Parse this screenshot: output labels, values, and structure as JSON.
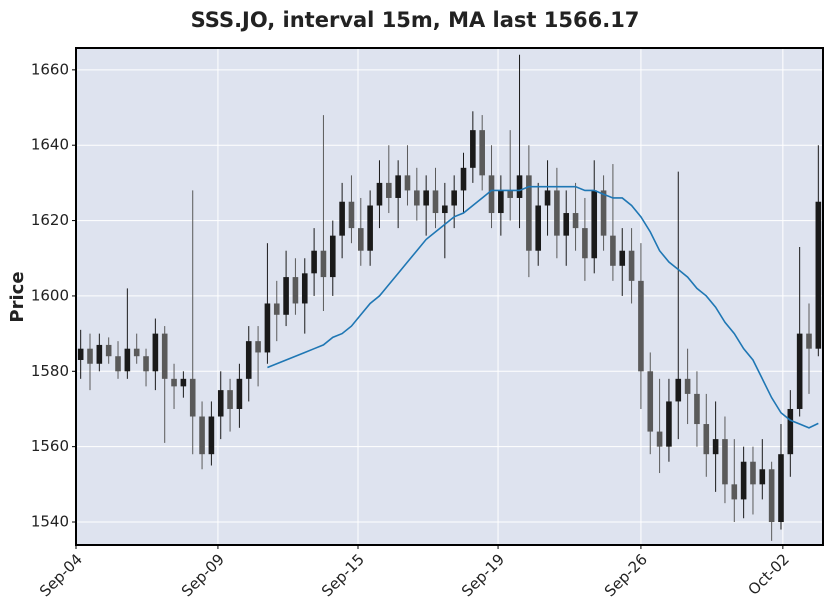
{
  "chart_data": {
    "type": "candlestick",
    "title": "SSS.JO, interval 15m, MA last 1566.17",
    "y_label": "Price",
    "candles": {
      "x": [
        0,
        1,
        2,
        3,
        4,
        5,
        6,
        7,
        8,
        9,
        10,
        11,
        12,
        13,
        14,
        15,
        16,
        17,
        18,
        19,
        20,
        21,
        22,
        23,
        24,
        25,
        26,
        27,
        28,
        29,
        30,
        31,
        32,
        33,
        34,
        35,
        36,
        37,
        38,
        39,
        40,
        41,
        42,
        43,
        44,
        45,
        46,
        47,
        48,
        49,
        50,
        51,
        52,
        53,
        54,
        55,
        56,
        57,
        58,
        59,
        60,
        61,
        62,
        63,
        64,
        65,
        66,
        67,
        68,
        69,
        70,
        71,
        72,
        73,
        74,
        75,
        76,
        77,
        78,
        79
      ],
      "open": [
        1583,
        1586,
        1582,
        1587,
        1584,
        1580,
        1586,
        1584,
        1580,
        1590,
        1578,
        1576,
        1578,
        1568,
        1558,
        1568,
        1575,
        1570,
        1578,
        1588,
        1585,
        1598,
        1595,
        1605,
        1598,
        1606,
        1612,
        1605,
        1616,
        1625,
        1618,
        1612,
        1624,
        1630,
        1626,
        1632,
        1628,
        1624,
        1628,
        1622,
        1624,
        1628,
        1634,
        1644,
        1632,
        1622,
        1628,
        1626,
        1632,
        1612,
        1624,
        1628,
        1616,
        1622,
        1618,
        1610,
        1628,
        1616,
        1608,
        1612,
        1604,
        1580,
        1564,
        1560,
        1572,
        1578,
        1574,
        1566,
        1558,
        1562,
        1550,
        1546,
        1556,
        1550,
        1554,
        1540,
        1558,
        1570,
        1590,
        1586
      ],
      "high": [
        1591,
        1590,
        1590,
        1589,
        1588,
        1602,
        1590,
        1586,
        1594,
        1592,
        1582,
        1580,
        1628,
        1572,
        1572,
        1580,
        1578,
        1582,
        1592,
        1592,
        1614,
        1604,
        1612,
        1610,
        1610,
        1618,
        1648,
        1620,
        1630,
        1632,
        1626,
        1628,
        1636,
        1640,
        1636,
        1640,
        1634,
        1632,
        1634,
        1630,
        1632,
        1638,
        1649,
        1648,
        1640,
        1632,
        1644,
        1664,
        1640,
        1630,
        1636,
        1634,
        1628,
        1630,
        1626,
        1636,
        1632,
        1635,
        1618,
        1618,
        1614,
        1585,
        1578,
        1578,
        1633,
        1586,
        1580,
        1574,
        1572,
        1568,
        1562,
        1560,
        1560,
        1562,
        1556,
        1566,
        1575,
        1613,
        1598,
        1640
      ],
      "low": [
        1578,
        1575,
        1580,
        1582,
        1578,
        1578,
        1582,
        1576,
        1575,
        1561,
        1570,
        1573,
        1558,
        1554,
        1555,
        1562,
        1564,
        1565,
        1572,
        1576,
        1582,
        1588,
        1592,
        1595,
        1590,
        1600,
        1596,
        1600,
        1610,
        1614,
        1608,
        1608,
        1618,
        1622,
        1618,
        1624,
        1620,
        1616,
        1618,
        1610,
        1618,
        1622,
        1630,
        1628,
        1618,
        1616,
        1620,
        1618,
        1605,
        1608,
        1616,
        1610,
        1608,
        1612,
        1604,
        1606,
        1612,
        1604,
        1600,
        1598,
        1570,
        1558,
        1553,
        1556,
        1562,
        1566,
        1560,
        1552,
        1548,
        1545,
        1540,
        1541,
        1542,
        1546,
        1535,
        1538,
        1552,
        1568,
        1574,
        1584
      ],
      "close": [
        1586,
        1582,
        1587,
        1584,
        1580,
        1586,
        1584,
        1580,
        1590,
        1578,
        1576,
        1578,
        1568,
        1558,
        1568,
        1575,
        1570,
        1578,
        1588,
        1585,
        1598,
        1595,
        1605,
        1598,
        1606,
        1612,
        1605,
        1616,
        1625,
        1618,
        1612,
        1624,
        1630,
        1626,
        1632,
        1628,
        1624,
        1628,
        1622,
        1624,
        1628,
        1634,
        1644,
        1632,
        1622,
        1628,
        1626,
        1632,
        1612,
        1624,
        1628,
        1616,
        1622,
        1618,
        1610,
        1628,
        1616,
        1608,
        1612,
        1604,
        1580,
        1564,
        1560,
        1572,
        1578,
        1574,
        1566,
        1558,
        1562,
        1550,
        1546,
        1556,
        1550,
        1554,
        1540,
        1558,
        1570,
        1590,
        1586,
        1625
      ]
    },
    "up_color": "#1a1a1a",
    "down_color": "#5a5a5a",
    "series": [
      {
        "color": "#1f77b4",
        "values": [
          null,
          null,
          null,
          null,
          null,
          null,
          null,
          null,
          null,
          null,
          null,
          null,
          null,
          null,
          null,
          null,
          null,
          null,
          null,
          null,
          1581,
          1582,
          1583,
          1584,
          1585,
          1586,
          1587,
          1589,
          1590,
          1592,
          1595,
          1598,
          1600,
          1603,
          1606,
          1609,
          1612,
          1615,
          1617,
          1619,
          1621,
          1622,
          1624,
          1626,
          1628,
          1628,
          1628,
          1628,
          1629,
          1629,
          1629,
          1629,
          1629,
          1629,
          1628,
          1628,
          1627,
          1626,
          1626,
          1624,
          1621,
          1617,
          1612,
          1609,
          1607,
          1605,
          1602,
          1600,
          1597,
          1593,
          1590,
          1586,
          1583,
          1578,
          1573,
          1569,
          1567,
          1566,
          1565,
          1566.17
        ]
      }
    ],
    "xlim": [
      -0.5,
      79.5
    ],
    "xticks": [
      {
        "value": -0.5,
        "label": "Sep-04"
      },
      {
        "value": 14.7,
        "label": "Sep-09"
      },
      {
        "value": 29.7,
        "label": "Sep-15"
      },
      {
        "value": 44.7,
        "label": "Sep-19"
      },
      {
        "value": 60.0,
        "label": "Sep-26"
      },
      {
        "value": 75.2,
        "label": "Oct-02"
      }
    ],
    "ylim": [
      1533.9,
      1665.8
    ],
    "yticks": [
      1540,
      1560,
      1580,
      1600,
      1620,
      1640,
      1660
    ],
    "grid": true
  }
}
